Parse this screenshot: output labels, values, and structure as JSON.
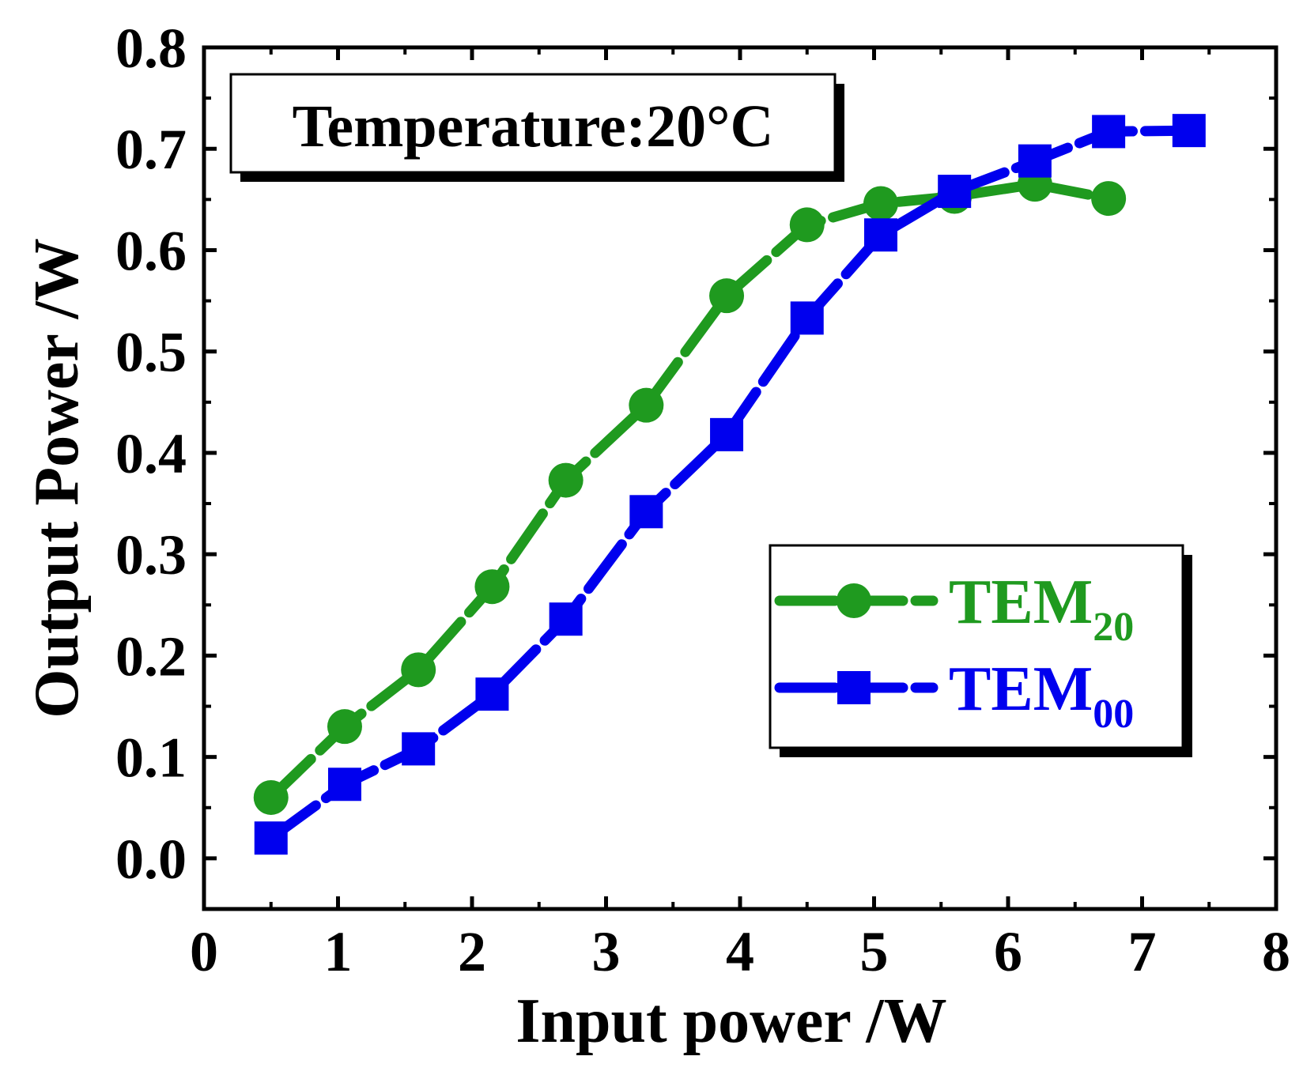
{
  "chart_data": {
    "type": "line",
    "title": "",
    "xlabel": "Input power /W",
    "ylabel": "Output Power /W",
    "xlim": [
      0,
      8
    ],
    "ylim": [
      -0.05,
      0.8
    ],
    "xticks": [
      "0",
      "1",
      "2",
      "3",
      "4",
      "5",
      "6",
      "7",
      "8"
    ],
    "yticks": [
      "0.0",
      "0.1",
      "0.2",
      "0.3",
      "0.4",
      "0.5",
      "0.6",
      "0.7",
      "0.8"
    ],
    "annotation": "Temperature:20°C",
    "legend_position": "lower-right",
    "series": [
      {
        "name": "TEM20",
        "label_main": "TEM",
        "label_sub": "20",
        "color": "#1f9a1f",
        "marker": "circle",
        "x": [
          0.5,
          1.05,
          1.6,
          2.15,
          2.7,
          3.3,
          3.9,
          4.5,
          5.05,
          5.6,
          6.2,
          6.75
        ],
        "y": [
          0.06,
          0.13,
          0.186,
          0.268,
          0.373,
          0.447,
          0.555,
          0.625,
          0.646,
          0.653,
          0.665,
          0.651
        ]
      },
      {
        "name": "TEM00",
        "label_main": "TEM",
        "label_sub": "00",
        "color": "#0000ee",
        "marker": "square",
        "x": [
          0.5,
          1.05,
          1.6,
          2.15,
          2.7,
          3.3,
          3.9,
          4.5,
          5.05,
          5.6,
          6.2,
          6.75,
          7.35
        ],
        "y": [
          0.02,
          0.073,
          0.108,
          0.162,
          0.236,
          0.342,
          0.418,
          0.533,
          0.615,
          0.658,
          0.688,
          0.717,
          0.718
        ]
      }
    ]
  }
}
